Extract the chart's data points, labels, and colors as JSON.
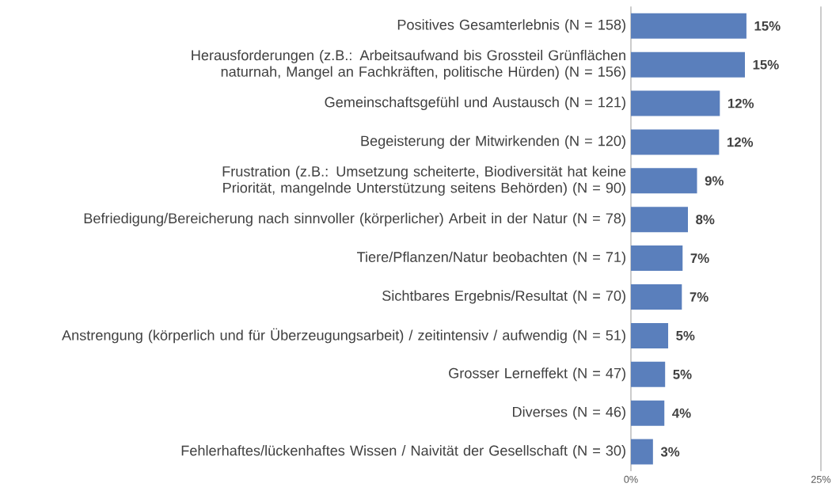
{
  "chart_data": {
    "type": "bar",
    "orientation": "horizontal",
    "categories": [
      "Positives Gesamterlebnis (N = 158)",
      "Herausforderungen (z.B.: Arbeitsaufwand bis Grossteil Grünflächen naturnah, Mangel an Fachkräften, politische Hürden) (N = 156)",
      "Gemeinschaftsgefühl und Austausch (N = 121)",
      "Begeisterung der Mitwirkenden (N = 120)",
      "Frustration (z.B.: Umsetzung scheiterte, Biodiversität hat keine Priorität, mangelnde Unterstützung seitens Behörden) (N = 90)",
      "Befriedigung/Bereicherung nach sinnvoller (körperlicher) Arbeit in der Natur (N = 78)",
      "Tiere/Pflanzen/Natur beobachten (N = 71)",
      "Sichtbares Ergebnis/Resultat (N = 70)",
      "Anstrengung (körperlich und für Überzeugungsarbeit) / zeitintensiv / aufwendig (N = 51)",
      "Grosser Lerneffekt (N = 47)",
      "Diverses (N = 46)",
      "Fehlerhaftes/lückenhaftes Wissen / Naivität der Gesellschaft (N = 30)"
    ],
    "values": [
      15.2,
      15.0,
      11.7,
      11.6,
      8.7,
      7.5,
      6.8,
      6.7,
      4.9,
      4.5,
      4.4,
      2.9
    ],
    "value_labels": [
      "15%",
      "15%",
      "12%",
      "12%",
      "9%",
      "8%",
      "7%",
      "7%",
      "5%",
      "5%",
      "4%",
      "3%"
    ],
    "color": "#5a7fbc",
    "xlim": [
      0,
      25
    ],
    "xticks": [
      {
        "value": 0,
        "label": "0%"
      },
      {
        "value": 25,
        "label": "25%"
      }
    ]
  }
}
